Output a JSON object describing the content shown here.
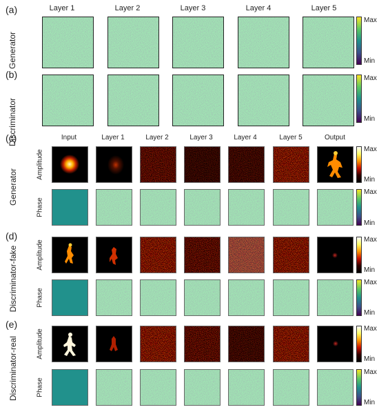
{
  "panels": {
    "a": {
      "label": "(a)",
      "row": "Generator"
    },
    "b": {
      "label": "(b)",
      "row": "Discriminator"
    },
    "c": {
      "label": "(c)",
      "row": "Generator"
    },
    "d": {
      "label": "(d)",
      "row": "Discriminator-fake"
    },
    "e": {
      "label": "(e)",
      "row": "Discriminator-real"
    }
  },
  "top_columns": [
    "Layer 1",
    "Layer 2",
    "Layer 3",
    "Layer 4",
    "Layer 5"
  ],
  "bottom_columns": [
    "Input",
    "Layer 1",
    "Layer 2",
    "Layer 3",
    "Layer 4",
    "Layer 5",
    "Output"
  ],
  "sub_rows": {
    "amplitude": "Amplitude",
    "phase": "Phase"
  },
  "colorbar": {
    "max": "Max",
    "min": "Min"
  },
  "colors": {
    "viridis_top": "#fde725",
    "viridis_bottom": "#440154",
    "phase_fill": "#21918c",
    "hot_top": "#ffffff",
    "hot_bottom": "#000000"
  }
}
